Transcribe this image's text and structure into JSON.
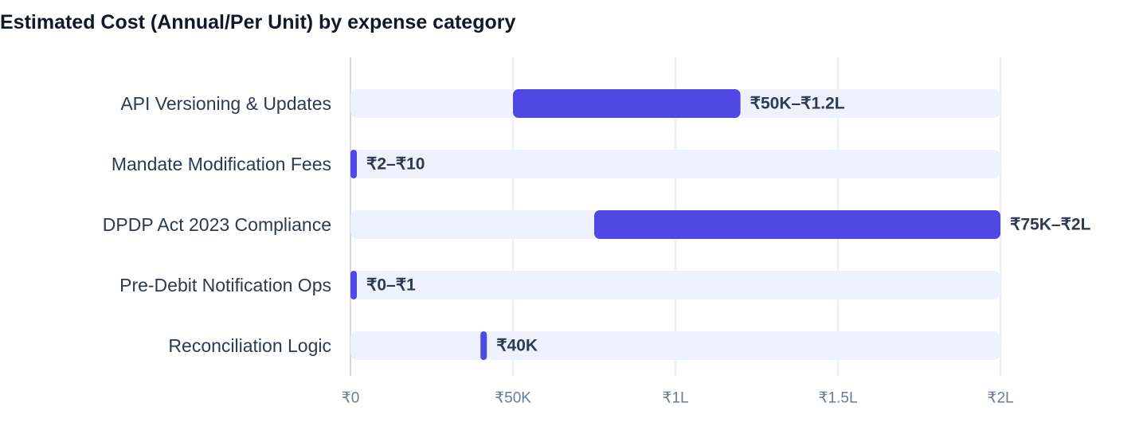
{
  "chart_data": {
    "type": "bar",
    "orientation": "horizontal",
    "title": "Estimated Cost (Annual/Per Unit) by expense category",
    "categories": [
      "API Versioning & Updates",
      "Mandate Modification Fees",
      "DPDP Act 2023 Compliance",
      "Pre-Debit Notification Ops",
      "Reconciliation Logic"
    ],
    "series": [
      {
        "ranges": [
          [
            50000,
            120000
          ],
          [
            2,
            10
          ],
          [
            75000,
            200000
          ],
          [
            0,
            1
          ],
          [
            40000,
            40000
          ]
        ],
        "labels": [
          "₹50K–₹1.2L",
          "₹2–₹10",
          "₹75K–₹2L",
          "₹0–₹1",
          "₹40K"
        ]
      }
    ],
    "xlim": [
      0,
      200000
    ],
    "xticks": [
      0,
      50000,
      100000,
      150000,
      200000
    ],
    "xtick_labels": [
      "₹0",
      "₹50K",
      "₹1L",
      "₹1.5L",
      "₹2L"
    ],
    "grid": "vertical",
    "colors": {
      "bar": "#5048e5",
      "track": "#eef2fd",
      "grid": "#dfe3ea",
      "axis": "#c9ced8"
    }
  }
}
